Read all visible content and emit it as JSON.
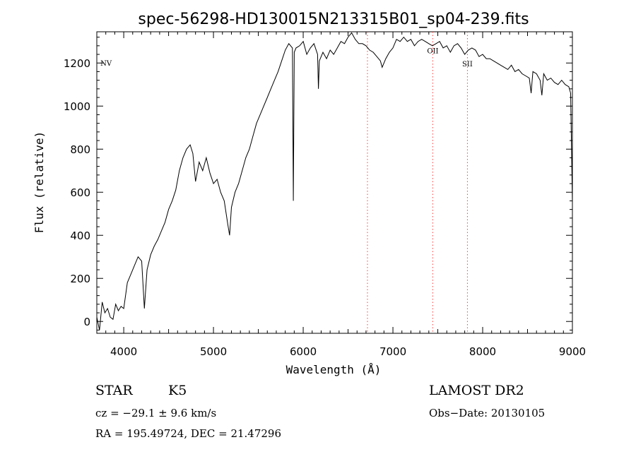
{
  "chart_data": {
    "type": "line",
    "title": "spec-56298-HD130015N213315B01_sp04-239.fits",
    "xlabel": "Wavelength (Å)",
    "ylabel": "Flux (relative)",
    "xlim": [
      3700,
      9000
    ],
    "ylim": [
      -55,
      1345
    ],
    "x_ticks": [
      4000,
      5000,
      6000,
      7000,
      8000,
      9000
    ],
    "y_ticks": [
      0,
      200,
      400,
      600,
      800,
      1000,
      1200
    ],
    "grid": false,
    "series": [
      {
        "x": [
          3700,
          3730,
          3760,
          3790,
          3820,
          3850,
          3880,
          3910,
          3940,
          3970,
          4000,
          4040,
          4080,
          4120,
          4160,
          4200,
          4230,
          4260,
          4300,
          4340,
          4380,
          4420,
          4460,
          4500,
          4540,
          4580,
          4620,
          4660,
          4700,
          4740,
          4770,
          4800,
          4840,
          4880,
          4920,
          4960,
          5000,
          5040,
          5080,
          5120,
          5160,
          5180,
          5200,
          5240,
          5280,
          5320,
          5360,
          5400,
          5440,
          5480,
          5520,
          5560,
          5600,
          5640,
          5680,
          5720,
          5760,
          5800,
          5840,
          5880,
          5890,
          5900,
          5920,
          5960,
          6000,
          6040,
          6080,
          6120,
          6160,
          6170,
          6180,
          6220,
          6260,
          6300,
          6340,
          6380,
          6420,
          6460,
          6500,
          6540,
          6580,
          6620,
          6660,
          6700,
          6740,
          6780,
          6820,
          6860,
          6880,
          6920,
          6960,
          7000,
          7040,
          7080,
          7120,
          7160,
          7200,
          7240,
          7280,
          7320,
          7360,
          7400,
          7440,
          7480,
          7520,
          7560,
          7600,
          7640,
          7680,
          7720,
          7760,
          7800,
          7840,
          7880,
          7920,
          7960,
          8000,
          8040,
          8080,
          8120,
          8160,
          8200,
          8240,
          8280,
          8320,
          8360,
          8400,
          8440,
          8480,
          8520,
          8540,
          8560,
          8600,
          8640,
          8660,
          8680,
          8720,
          8760,
          8800,
          8840,
          8880,
          8920,
          8960,
          8980,
          9000
        ],
        "values": [
          20,
          -40,
          90,
          40,
          60,
          20,
          10,
          80,
          50,
          70,
          60,
          180,
          220,
          260,
          300,
          280,
          60,
          240,
          310,
          350,
          380,
          420,
          460,
          520,
          560,
          610,
          700,
          760,
          800,
          820,
          780,
          650,
          740,
          700,
          760,
          690,
          640,
          660,
          600,
          560,
          450,
          400,
          530,
          600,
          640,
          700,
          760,
          800,
          860,
          920,
          960,
          1000,
          1040,
          1080,
          1120,
          1160,
          1210,
          1260,
          1290,
          1270,
          560,
          1250,
          1270,
          1280,
          1300,
          1240,
          1270,
          1290,
          1240,
          1080,
          1210,
          1250,
          1220,
          1260,
          1240,
          1270,
          1300,
          1290,
          1320,
          1340,
          1310,
          1290,
          1290,
          1280,
          1260,
          1250,
          1230,
          1210,
          1180,
          1220,
          1250,
          1270,
          1310,
          1300,
          1320,
          1300,
          1310,
          1280,
          1300,
          1310,
          1300,
          1290,
          1280,
          1290,
          1300,
          1270,
          1280,
          1250,
          1280,
          1290,
          1270,
          1240,
          1260,
          1270,
          1260,
          1230,
          1240,
          1220,
          1220,
          1210,
          1200,
          1190,
          1180,
          1170,
          1190,
          1160,
          1170,
          1150,
          1140,
          1130,
          1060,
          1160,
          1150,
          1120,
          1050,
          1150,
          1120,
          1130,
          1110,
          1100,
          1120,
          1100,
          1090,
          1060,
          550
        ]
      }
    ],
    "annotations": [
      {
        "label": "NV",
        "x": 3740,
        "y": 1187,
        "marker_line": false
      },
      {
        "label": "",
        "x": 6716,
        "y": null,
        "marker_line": true
      },
      {
        "label": "OII",
        "x": 7444,
        "y": 1245,
        "marker_line": true
      },
      {
        "label": "SII",
        "x": 7830,
        "y": 1185,
        "marker_line": true
      }
    ],
    "colors": {
      "trace": "#000000",
      "marker": "#ff4040"
    }
  },
  "info": {
    "object_type": "STAR",
    "subclass": "K5",
    "cz": "cz = −29.1 ± 9.6 km/s",
    "coords": "RA = 195.49724, DEC =  21.47296",
    "survey": "LAMOST DR2",
    "obs_date": "Obs−Date: 20130105"
  }
}
